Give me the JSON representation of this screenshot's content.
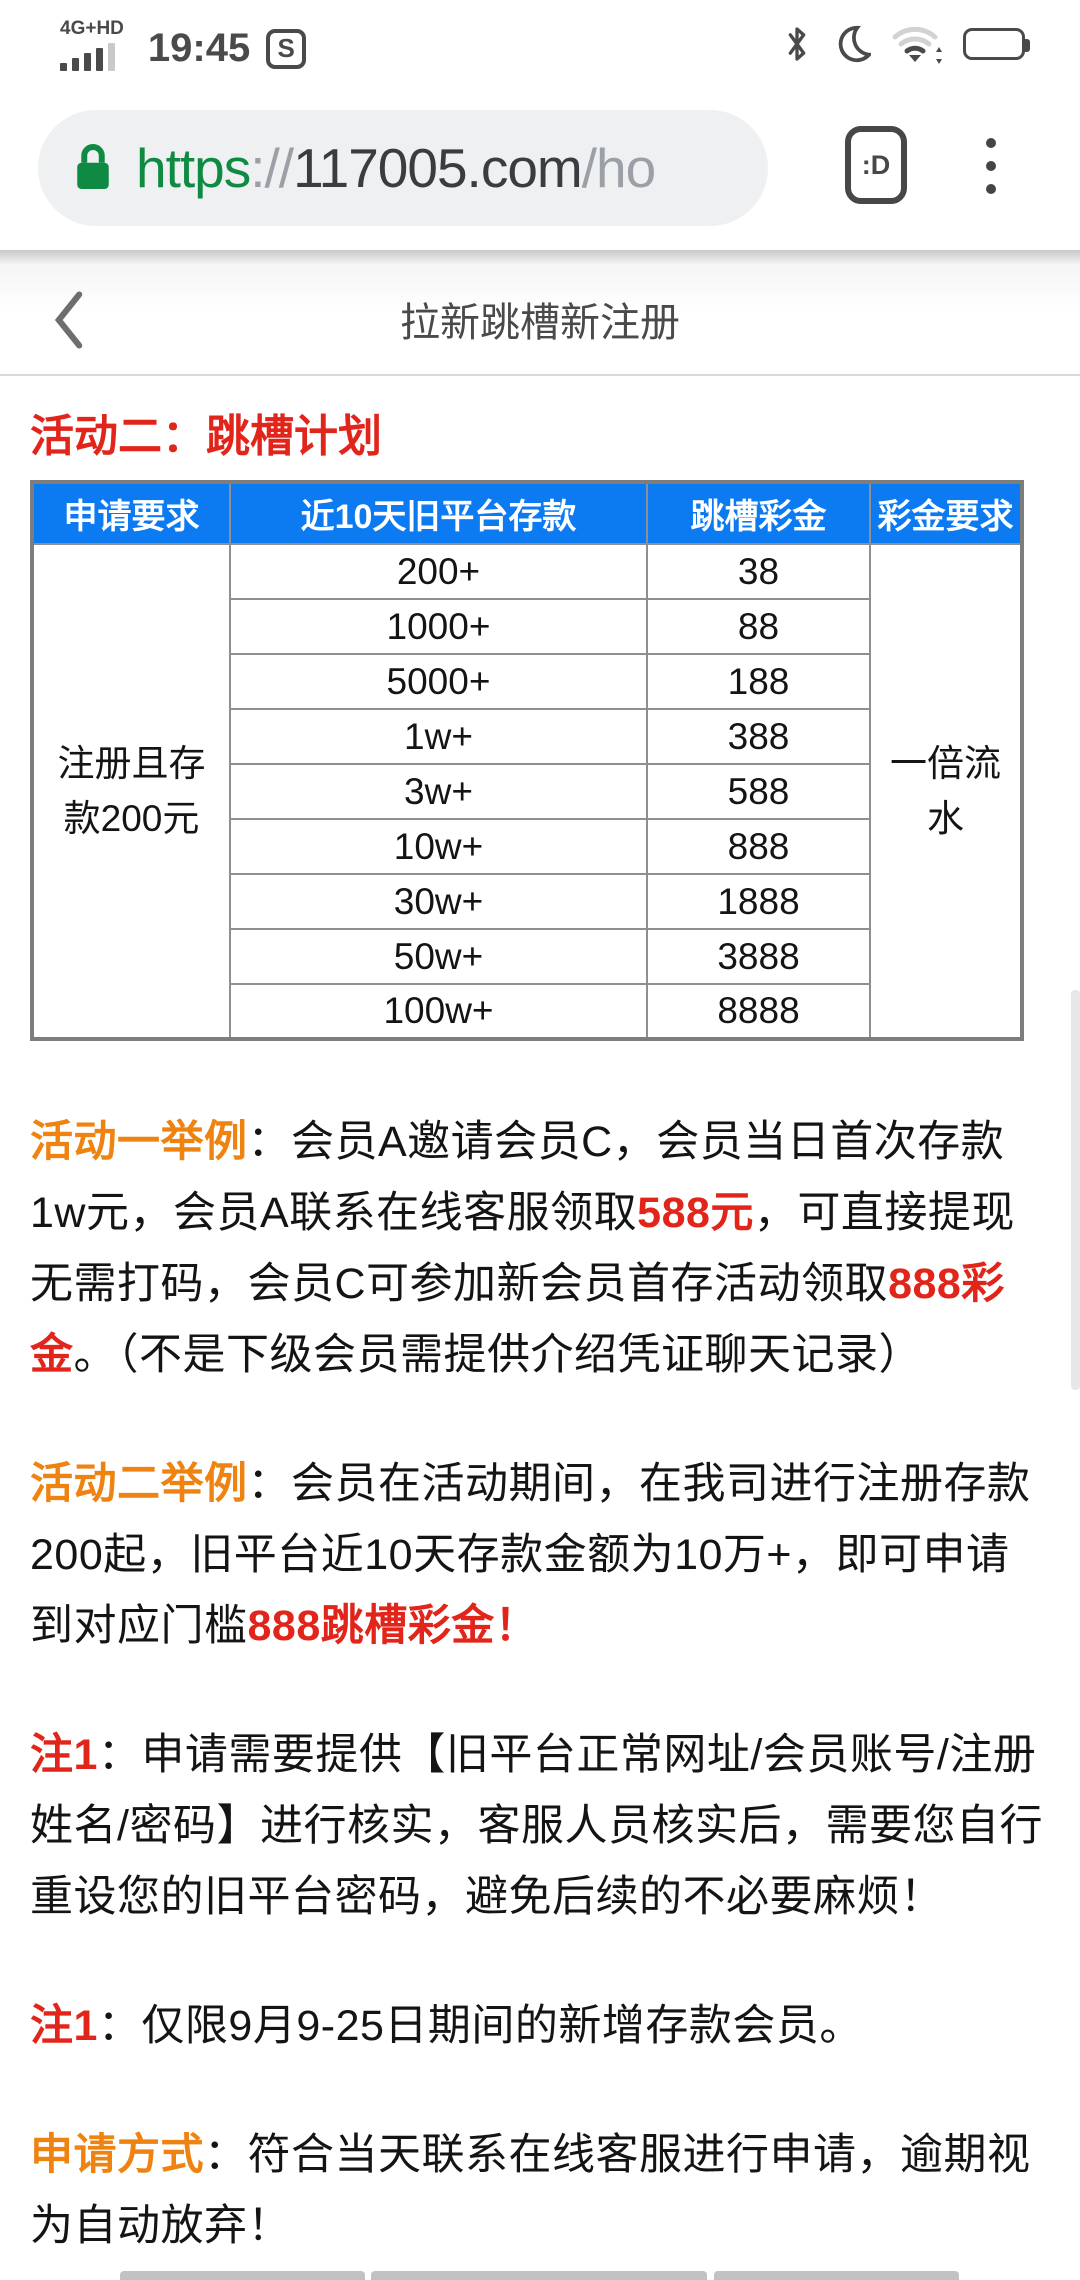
{
  "status_bar": {
    "network_label": "4G+HD",
    "time": "19:45",
    "signal": {
      "filled_bars": 4,
      "total_bars": 5
    },
    "battery_fill_percent": 72,
    "icons": [
      "signal-strength",
      "screenshot-s",
      "bluetooth",
      "do-not-disturb-moon",
      "wifi",
      "battery"
    ]
  },
  "browser": {
    "url": {
      "scheme": "https",
      "separator": "://",
      "host": "117005.com",
      "path": "/ho"
    },
    "tab_switcher_badge": ":D"
  },
  "page_header": {
    "title": "拉新跳槽新注册"
  },
  "main": {
    "heading": "活动二：跳槽计划",
    "table": {
      "headers": [
        "申请要求",
        "近10天旧平台存款",
        "跳槽彩金",
        "彩金要求"
      ],
      "merged_first_col": "注册且存款200元",
      "merged_last_col": "一倍流水",
      "rows": [
        {
          "deposit": "200+",
          "bonus": "38"
        },
        {
          "deposit": "1000+",
          "bonus": "88"
        },
        {
          "deposit": "5000+",
          "bonus": "188"
        },
        {
          "deposit": "1w+",
          "bonus": "388"
        },
        {
          "deposit": "3w+",
          "bonus": "588"
        },
        {
          "deposit": "10w+",
          "bonus": "888"
        },
        {
          "deposit": "30w+",
          "bonus": "1888"
        },
        {
          "deposit": "50w+",
          "bonus": "3888"
        },
        {
          "deposit": "100w+",
          "bonus": "8888"
        }
      ]
    },
    "paragraphs": [
      {
        "name": "example-1",
        "segments": [
          {
            "text": "活动一举例",
            "style": "orange"
          },
          {
            "text": "：会员A邀请会员C，会员当日首次存款1w元，会员A联系在线客服领取",
            "style": "normal"
          },
          {
            "text": "588元",
            "style": "red"
          },
          {
            "text": "，可直接提现无需打码，会员C可参加新会员首存活动领取",
            "style": "normal"
          },
          {
            "text": "888彩金",
            "style": "red"
          },
          {
            "text": "。（不是下级会员需提供介绍凭证聊天记录）",
            "style": "normal"
          }
        ]
      },
      {
        "name": "example-2",
        "segments": [
          {
            "text": "活动二举例",
            "style": "orange"
          },
          {
            "text": "：会员在活动期间，在我司进行注册存款200起，旧平台近10天存款金额为10万+，即可申请到对应门槛",
            "style": "normal"
          },
          {
            "text": "888跳槽彩金！",
            "style": "red"
          }
        ]
      },
      {
        "name": "note-1",
        "segments": [
          {
            "text": "注1",
            "style": "red"
          },
          {
            "text": "：申请需要提供【旧平台正常网址/会员账号/注册姓名/密码】进行核实，客服人员核实后，需要您自行重设您的旧平台密码，避免后续的不必要麻烦！",
            "style": "normal"
          }
        ]
      },
      {
        "name": "note-2",
        "segments": [
          {
            "text": "注1",
            "style": "red"
          },
          {
            "text": "：仅限9月9-25日期间的新增存款会员。",
            "style": "normal"
          }
        ]
      },
      {
        "name": "apply-method",
        "segments": [
          {
            "text": "申请方式",
            "style": "orange"
          },
          {
            "text": "：符合当天联系在线客服进行申请，逾期视为自动放弃！",
            "style": "normal"
          }
        ]
      }
    ]
  },
  "colors": {
    "table_header_blue": "#0c7bf2",
    "highlight_red": "#e1251b",
    "label_orange": "#ee8311",
    "secure_green": "#0e8a43",
    "url_muted_gray": "#9aa0a6"
  }
}
